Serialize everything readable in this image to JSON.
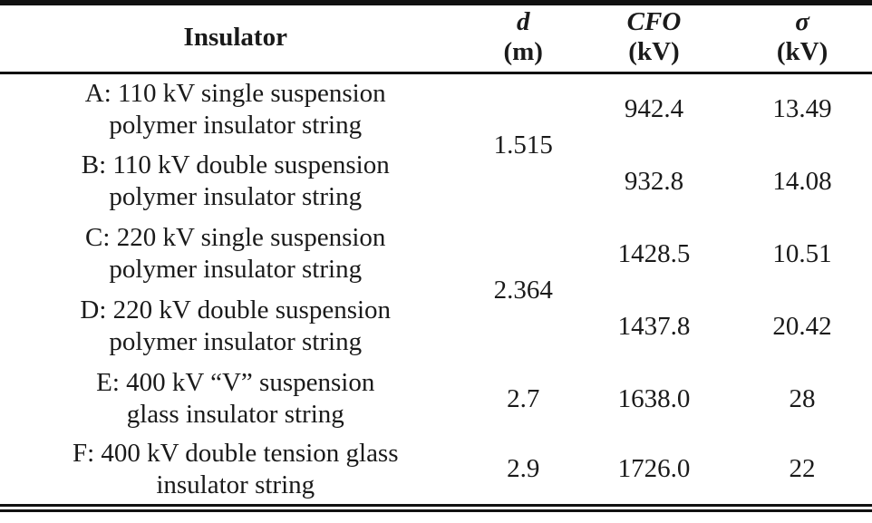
{
  "colors": {
    "text": "#1a1a1a",
    "background": "#ffffff",
    "rule": "#111111"
  },
  "table": {
    "header": {
      "insulator": "Insulator",
      "d_symbol": "d",
      "d_unit": "(m)",
      "cfo_symbol": "CFO",
      "cfo_unit": "(kV)",
      "sigma_symbol": "σ",
      "sigma_unit": "(kV)"
    },
    "rows": [
      {
        "id": "A",
        "name": "A: 110 kV single suspension\npolymer insulator string",
        "d": "1.515",
        "d_rowspan": 2,
        "cfo": "942.4",
        "sigma": "13.49"
      },
      {
        "id": "B",
        "name": "B: 110 kV double suspension\npolymer insulator string",
        "d": "",
        "d_rowspan": 0,
        "cfo": "932.8",
        "sigma": "14.08"
      },
      {
        "id": "C",
        "name": "C: 220 kV single suspension\npolymer insulator string",
        "d": "2.364",
        "d_rowspan": 2,
        "cfo": "1428.5",
        "sigma": "10.51"
      },
      {
        "id": "D",
        "name": "D: 220 kV double suspension\npolymer insulator string",
        "d": "",
        "d_rowspan": 0,
        "cfo": "1437.8",
        "sigma": "20.42"
      },
      {
        "id": "E",
        "name": "E: 400 kV “V” suspension\nglass insulator string",
        "d": "2.7",
        "d_rowspan": 1,
        "cfo": "1638.0",
        "sigma": "28"
      },
      {
        "id": "F",
        "name": "F: 400 kV double tension glass\ninsulator string",
        "d": "2.9",
        "d_rowspan": 1,
        "cfo": "1726.0",
        "sigma": "22"
      }
    ]
  }
}
